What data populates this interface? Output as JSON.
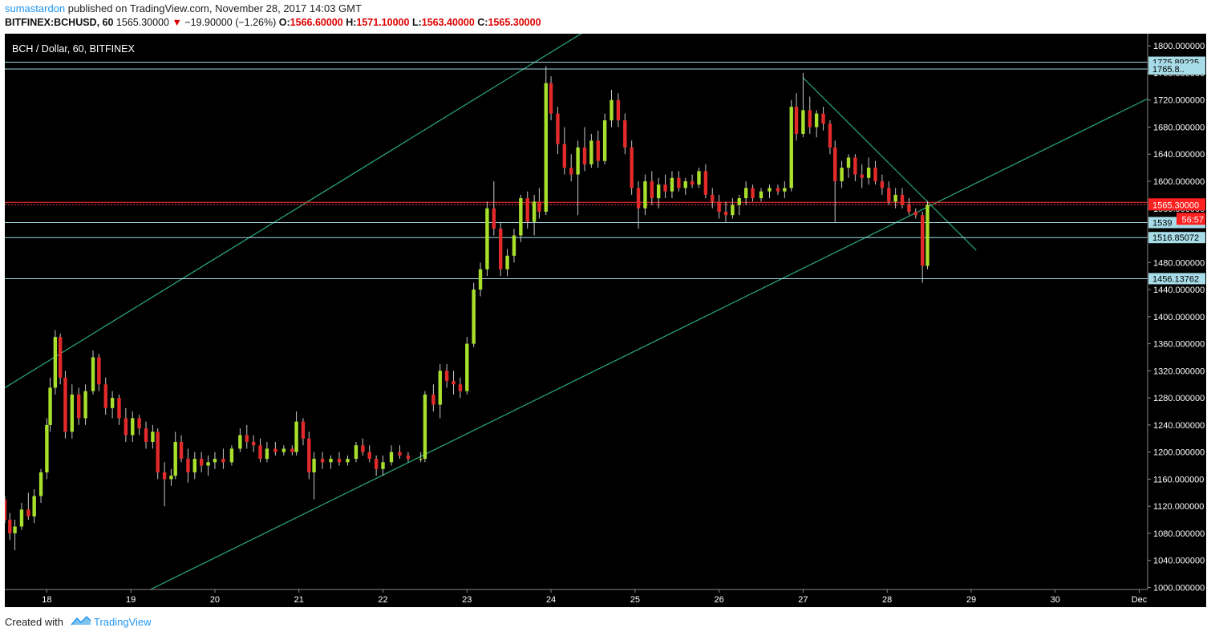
{
  "header": {
    "author": "sumastardon",
    "published_text": "published on TradingView.com, November 28, 2017 14:03 GMT",
    "symbol": "BITFINEX:BCHUSD, 60",
    "last": "1565.30000",
    "change": "−19.90000 (−1.26%)",
    "open_label": "O:",
    "open": "1566.60000",
    "high_label": "H:",
    "high": "1571.10000",
    "low_label": "L:",
    "low": "1563.40000",
    "close_label": "C:",
    "close": "1565.30000"
  },
  "colors": {
    "background": "#000000",
    "up_candle": "#a8e02c",
    "down_candle": "#e32a2a",
    "wick": "#c8c8c8",
    "trendline": "#2aa978",
    "level_line": "#9fd8e6",
    "price_line": "#ff3030",
    "axis_text": "#ffffff",
    "price_label_bg": "#a8dce8",
    "current_price_bg": "#ff2020",
    "brand_blue": "#2196f3"
  },
  "chart_data": {
    "type": "candlestick",
    "title": "BCH / Dollar, 60, BITFINEX",
    "x_tick_labels": [
      "18",
      "19",
      "20",
      "21",
      "22",
      "23",
      "24",
      "25",
      "26",
      "27",
      "28",
      "29",
      "30",
      "Dec"
    ],
    "y_tick_labels": [
      "1000.000000",
      "1040.000000",
      "1080.000000",
      "1120.000000",
      "1160.000000",
      "1200.000000",
      "1240.000000",
      "1280.000000",
      "1320.000000",
      "1360.000000",
      "1400.000000",
      "1440.000000",
      "1480.000000",
      "1520.000000",
      "1560.000000",
      "1600.000000",
      "1640.000000",
      "1680.000000",
      "1720.000000",
      "1760.000000",
      "1800.000000"
    ],
    "y_ticks": [
      1000,
      1040,
      1080,
      1120,
      1160,
      1200,
      1240,
      1280,
      1320,
      1360,
      1400,
      1440,
      1480,
      1520,
      1560,
      1600,
      1640,
      1680,
      1720,
      1760,
      1800
    ],
    "x_ticks_day": [
      18,
      19,
      20,
      21,
      22,
      23,
      24,
      25,
      26,
      27,
      28,
      29,
      30,
      31
    ],
    "x_range_days": [
      17.5,
      31.1
    ],
    "ylim": [
      997,
      1818
    ],
    "candles_days": [
      [
        17.5,
        1130,
        1135,
        1095,
        1100
      ],
      [
        17.56,
        1100,
        1110,
        1070,
        1080
      ],
      [
        17.62,
        1080,
        1100,
        1055,
        1090
      ],
      [
        17.7,
        1090,
        1125,
        1085,
        1115
      ],
      [
        17.78,
        1115,
        1140,
        1100,
        1105
      ],
      [
        17.85,
        1105,
        1145,
        1095,
        1135
      ],
      [
        17.93,
        1135,
        1175,
        1125,
        1170
      ],
      [
        18.0,
        1170,
        1250,
        1160,
        1240
      ],
      [
        18.04,
        1240,
        1310,
        1230,
        1295
      ],
      [
        18.1,
        1295,
        1380,
        1285,
        1370
      ],
      [
        18.16,
        1370,
        1375,
        1300,
        1310
      ],
      [
        18.22,
        1310,
        1320,
        1220,
        1230
      ],
      [
        18.3,
        1230,
        1300,
        1220,
        1285
      ],
      [
        18.38,
        1285,
        1295,
        1240,
        1250
      ],
      [
        18.46,
        1250,
        1300,
        1240,
        1290
      ],
      [
        18.55,
        1290,
        1350,
        1285,
        1340
      ],
      [
        18.62,
        1340,
        1345,
        1290,
        1300
      ],
      [
        18.7,
        1300,
        1310,
        1255,
        1265
      ],
      [
        18.78,
        1265,
        1290,
        1250,
        1280
      ],
      [
        18.86,
        1280,
        1285,
        1240,
        1250
      ],
      [
        18.94,
        1250,
        1265,
        1215,
        1225
      ],
      [
        19.02,
        1225,
        1260,
        1215,
        1250
      ],
      [
        19.1,
        1250,
        1255,
        1225,
        1235
      ],
      [
        19.18,
        1235,
        1245,
        1205,
        1215
      ],
      [
        19.26,
        1215,
        1240,
        1205,
        1230
      ],
      [
        19.32,
        1230,
        1235,
        1160,
        1170
      ],
      [
        19.4,
        1170,
        1185,
        1120,
        1160
      ],
      [
        19.48,
        1160,
        1175,
        1150,
        1165
      ],
      [
        19.53,
        1165,
        1230,
        1160,
        1215
      ],
      [
        19.6,
        1215,
        1225,
        1185,
        1190
      ],
      [
        19.68,
        1190,
        1205,
        1155,
        1170
      ],
      [
        19.76,
        1170,
        1200,
        1160,
        1190
      ],
      [
        19.84,
        1190,
        1200,
        1170,
        1180
      ],
      [
        19.92,
        1180,
        1195,
        1165,
        1185
      ],
      [
        20.0,
        1185,
        1200,
        1175,
        1190
      ],
      [
        20.1,
        1190,
        1205,
        1175,
        1185
      ],
      [
        20.2,
        1185,
        1210,
        1180,
        1205
      ],
      [
        20.3,
        1205,
        1235,
        1200,
        1225
      ],
      [
        20.38,
        1225,
        1240,
        1205,
        1215
      ],
      [
        20.46,
        1215,
        1225,
        1200,
        1210
      ],
      [
        20.54,
        1210,
        1220,
        1185,
        1190
      ],
      [
        20.62,
        1190,
        1215,
        1185,
        1205
      ],
      [
        20.72,
        1205,
        1215,
        1195,
        1200
      ],
      [
        20.82,
        1200,
        1210,
        1195,
        1205
      ],
      [
        20.92,
        1205,
        1210,
        1195,
        1200
      ],
      [
        20.97,
        1200,
        1260,
        1195,
        1245
      ],
      [
        21.05,
        1245,
        1250,
        1210,
        1220
      ],
      [
        21.12,
        1220,
        1230,
        1160,
        1170
      ],
      [
        21.18,
        1170,
        1200,
        1130,
        1190
      ],
      [
        21.28,
        1190,
        1200,
        1175,
        1185
      ],
      [
        21.38,
        1185,
        1195,
        1175,
        1190
      ],
      [
        21.48,
        1190,
        1200,
        1180,
        1185
      ],
      [
        21.58,
        1185,
        1195,
        1180,
        1190
      ],
      [
        21.68,
        1190,
        1215,
        1185,
        1210
      ],
      [
        21.76,
        1210,
        1220,
        1195,
        1200
      ],
      [
        21.84,
        1200,
        1210,
        1185,
        1190
      ],
      [
        21.92,
        1190,
        1195,
        1165,
        1175
      ],
      [
        22.0,
        1175,
        1195,
        1165,
        1185
      ],
      [
        22.1,
        1185,
        1210,
        1180,
        1200
      ],
      [
        22.2,
        1200,
        1210,
        1190,
        1195
      ],
      [
        22.3,
        1195,
        1200,
        1185,
        1190
      ],
      [
        22.45,
        1190,
        1200,
        1185,
        1190
      ],
      [
        22.5,
        1190,
        1290,
        1185,
        1285
      ],
      [
        22.6,
        1285,
        1300,
        1260,
        1270
      ],
      [
        22.68,
        1270,
        1330,
        1250,
        1320
      ],
      [
        22.76,
        1320,
        1330,
        1295,
        1305
      ],
      [
        22.84,
        1305,
        1320,
        1285,
        1300
      ],
      [
        22.92,
        1300,
        1310,
        1280,
        1290
      ],
      [
        23.0,
        1290,
        1370,
        1285,
        1360
      ],
      [
        23.08,
        1360,
        1450,
        1355,
        1440
      ],
      [
        23.16,
        1440,
        1480,
        1430,
        1470
      ],
      [
        23.24,
        1470,
        1570,
        1460,
        1560
      ],
      [
        23.32,
        1560,
        1600,
        1520,
        1530
      ],
      [
        23.4,
        1530,
        1540,
        1460,
        1470
      ],
      [
        23.48,
        1470,
        1500,
        1460,
        1490
      ],
      [
        23.56,
        1490,
        1530,
        1480,
        1520
      ],
      [
        23.64,
        1520,
        1580,
        1510,
        1575
      ],
      [
        23.72,
        1575,
        1585,
        1530,
        1540
      ],
      [
        23.8,
        1540,
        1580,
        1520,
        1570
      ],
      [
        23.86,
        1570,
        1590,
        1545,
        1555
      ],
      [
        23.94,
        1555,
        1770,
        1550,
        1745
      ],
      [
        24.0,
        1745,
        1755,
        1690,
        1700
      ],
      [
        24.08,
        1700,
        1710,
        1640,
        1655
      ],
      [
        24.16,
        1655,
        1680,
        1610,
        1620
      ],
      [
        24.24,
        1620,
        1640,
        1600,
        1610
      ],
      [
        24.32,
        1610,
        1660,
        1550,
        1650
      ],
      [
        24.4,
        1650,
        1680,
        1615,
        1625
      ],
      [
        24.48,
        1625,
        1670,
        1620,
        1660
      ],
      [
        24.56,
        1660,
        1675,
        1620,
        1630
      ],
      [
        24.64,
        1630,
        1700,
        1625,
        1690
      ],
      [
        24.72,
        1690,
        1735,
        1680,
        1720
      ],
      [
        24.8,
        1720,
        1730,
        1680,
        1690
      ],
      [
        24.88,
        1690,
        1700,
        1640,
        1650
      ],
      [
        24.96,
        1650,
        1660,
        1580,
        1590
      ],
      [
        25.04,
        1590,
        1600,
        1530,
        1560
      ],
      [
        25.12,
        1560,
        1610,
        1550,
        1600
      ],
      [
        25.2,
        1600,
        1615,
        1565,
        1575
      ],
      [
        25.28,
        1575,
        1605,
        1560,
        1595
      ],
      [
        25.36,
        1595,
        1610,
        1575,
        1585
      ],
      [
        25.44,
        1585,
        1615,
        1575,
        1605
      ],
      [
        25.52,
        1605,
        1615,
        1585,
        1590
      ],
      [
        25.6,
        1590,
        1605,
        1580,
        1600
      ],
      [
        25.68,
        1600,
        1610,
        1590,
        1595
      ],
      [
        25.76,
        1595,
        1620,
        1590,
        1615
      ],
      [
        25.84,
        1615,
        1625,
        1575,
        1580
      ],
      [
        25.92,
        1580,
        1590,
        1560,
        1570
      ],
      [
        26.0,
        1570,
        1580,
        1545,
        1555
      ],
      [
        26.08,
        1555,
        1570,
        1540,
        1550
      ],
      [
        26.16,
        1550,
        1575,
        1545,
        1565
      ],
      [
        26.24,
        1565,
        1580,
        1550,
        1575
      ],
      [
        26.32,
        1575,
        1600,
        1565,
        1590
      ],
      [
        26.4,
        1590,
        1595,
        1570,
        1575
      ],
      [
        26.5,
        1575,
        1590,
        1570,
        1585
      ],
      [
        26.6,
        1585,
        1595,
        1575,
        1590
      ],
      [
        26.7,
        1590,
        1595,
        1580,
        1585
      ],
      [
        26.78,
        1585,
        1600,
        1575,
        1590
      ],
      [
        26.86,
        1590,
        1720,
        1585,
        1710
      ],
      [
        26.92,
        1710,
        1730,
        1660,
        1670
      ],
      [
        27.0,
        1670,
        1760,
        1665,
        1705
      ],
      [
        27.08,
        1705,
        1725,
        1670,
        1680
      ],
      [
        27.16,
        1680,
        1705,
        1665,
        1700
      ],
      [
        27.24,
        1700,
        1710,
        1675,
        1685
      ],
      [
        27.32,
        1685,
        1690,
        1640,
        1650
      ],
      [
        27.38,
        1650,
        1660,
        1540,
        1600
      ],
      [
        27.46,
        1600,
        1630,
        1590,
        1620
      ],
      [
        27.54,
        1620,
        1640,
        1605,
        1635
      ],
      [
        27.62,
        1635,
        1640,
        1600,
        1610
      ],
      [
        27.7,
        1610,
        1625,
        1590,
        1605
      ],
      [
        27.78,
        1605,
        1635,
        1595,
        1620
      ],
      [
        27.86,
        1620,
        1630,
        1595,
        1600
      ],
      [
        27.94,
        1600,
        1610,
        1580,
        1590
      ],
      [
        28.02,
        1590,
        1600,
        1565,
        1570
      ],
      [
        28.1,
        1570,
        1590,
        1560,
        1580
      ],
      [
        28.18,
        1580,
        1590,
        1560,
        1565
      ],
      [
        28.26,
        1565,
        1575,
        1550,
        1555
      ],
      [
        28.34,
        1555,
        1560,
        1545,
        1550
      ],
      [
        28.42,
        1550,
        1555,
        1450,
        1475
      ],
      [
        28.48,
        1475,
        1571,
        1470,
        1565
      ]
    ],
    "levels": [
      {
        "value": 1775.89225,
        "label": "1775.89225"
      },
      {
        "value": 1765.8,
        "label": "1765.8.."
      },
      {
        "value": 1539.0,
        "label": "1539"
      },
      {
        "value": 1516.85072,
        "label": "1516.85072"
      },
      {
        "value": 1456.13762,
        "label": "1456.13762"
      }
    ],
    "current_price": {
      "value": 1565.3,
      "label": "1565.30000",
      "countdown": "56:57"
    },
    "trendlines_day_price": [
      {
        "name": "channel-upper",
        "from": [
          17.5,
          1295
        ],
        "to": [
          25.5,
          1905
        ]
      },
      {
        "name": "channel-lower",
        "from": [
          19.2,
          995
        ],
        "to": [
          31.1,
          1722
        ]
      },
      {
        "name": "descending",
        "from": [
          27.0,
          1753
        ],
        "to": [
          29.06,
          1498
        ]
      }
    ]
  },
  "footer": {
    "created_with": "Created with",
    "brand": "TradingView"
  }
}
